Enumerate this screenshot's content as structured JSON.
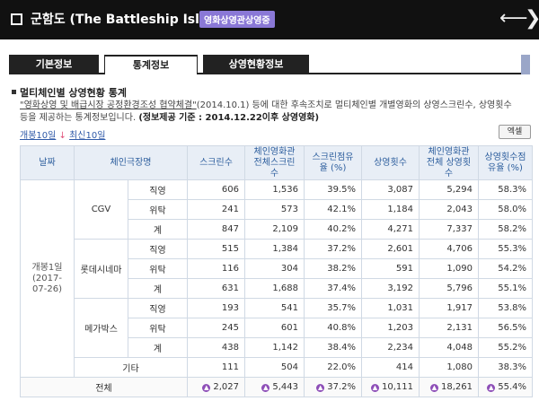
{
  "header": {
    "title": "군함도 (The Battleship Island)",
    "badge": "영화상영관상영중",
    "back_arrow": "arrow-left-icon",
    "forward_arrow": "chevron-right-icon"
  },
  "tabs": [
    {
      "label": "기본정보",
      "active": false
    },
    {
      "label": "통계정보",
      "active": true
    },
    {
      "label": "상영현황정보",
      "active": false
    }
  ],
  "section": {
    "title": "멀티체인별 상영현황 통계",
    "desc_line1_pre": "\"영화상영 및 배급시장 공정환경조성 협약체결\"",
    "desc_line1_post": "(2014.10.1) 등에 대한 후속조치로 멀티체인별 개별영화의 상영스크린수, 상영횟수",
    "desc_line2_pre": "등을 제공하는 통계정보입니다.",
    "desc_line2_bold": "(정보제공 기준 : 2014.12.22이후 상영영화)",
    "link_first": "개봉10일",
    "link_sep": "↓",
    "link_latest": "최신10일",
    "excel_button": "엑셀"
  },
  "table": {
    "headers": {
      "date": "날짜",
      "chain": "체인극장명",
      "screens": "스크린수",
      "chain_total_screens": "체인영화관 전체스크린 수",
      "screen_share": "스크린점유율 (%)",
      "shows": "상영횟수",
      "chain_total_shows": "체인영화관 전체 상영횟수",
      "show_share": "상영횟수점유율 (%)"
    },
    "date_cell": "개봉1일 (2017-07-26)",
    "rows": [
      {
        "chain": "CGV",
        "type": "직영",
        "screens": "606",
        "chain_screens": "1,536",
        "screen_share": "39.5%",
        "shows": "3,087",
        "chain_shows": "5,294",
        "show_share": "58.3%"
      },
      {
        "chain": "",
        "type": "위탁",
        "screens": "241",
        "chain_screens": "573",
        "screen_share": "42.1%",
        "shows": "1,184",
        "chain_shows": "2,043",
        "show_share": "58.0%"
      },
      {
        "chain": "",
        "type": "계",
        "screens": "847",
        "chain_screens": "2,109",
        "screen_share": "40.2%",
        "shows": "4,271",
        "chain_shows": "7,337",
        "show_share": "58.2%"
      },
      {
        "chain": "롯데시네마",
        "type": "직영",
        "screens": "515",
        "chain_screens": "1,384",
        "screen_share": "37.2%",
        "shows": "2,601",
        "chain_shows": "4,706",
        "show_share": "55.3%"
      },
      {
        "chain": "",
        "type": "위탁",
        "screens": "116",
        "chain_screens": "304",
        "screen_share": "38.2%",
        "shows": "591",
        "chain_shows": "1,090",
        "show_share": "54.2%"
      },
      {
        "chain": "",
        "type": "계",
        "screens": "631",
        "chain_screens": "1,688",
        "screen_share": "37.4%",
        "shows": "3,192",
        "chain_shows": "5,796",
        "show_share": "55.1%"
      },
      {
        "chain": "메가박스",
        "type": "직영",
        "screens": "193",
        "chain_screens": "541",
        "screen_share": "35.7%",
        "shows": "1,031",
        "chain_shows": "1,917",
        "show_share": "53.8%"
      },
      {
        "chain": "",
        "type": "위탁",
        "screens": "245",
        "chain_screens": "601",
        "screen_share": "40.8%",
        "shows": "1,203",
        "chain_shows": "2,131",
        "show_share": "56.5%"
      },
      {
        "chain": "",
        "type": "계",
        "screens": "438",
        "chain_screens": "1,142",
        "screen_share": "38.4%",
        "shows": "2,234",
        "chain_shows": "4,048",
        "show_share": "55.2%"
      }
    ],
    "other": {
      "label": "기타",
      "screens": "111",
      "chain_screens": "504",
      "screen_share": "22.0%",
      "shows": "414",
      "chain_shows": "1,080",
      "show_share": "38.3%"
    },
    "total": {
      "label": "전체",
      "screens": "2,027",
      "chain_screens": "5,443",
      "screen_share": "37.2%",
      "shows": "10,111",
      "chain_shows": "18,261",
      "show_share": "55.4%",
      "marker_icon": "up-arrow-icon"
    }
  },
  "colors": {
    "header_bg": "#111111",
    "badge": "#8a78d6",
    "table_head": "#e8eef6",
    "head_text": "#2e5f9e",
    "marker": "#8e4fb8"
  }
}
